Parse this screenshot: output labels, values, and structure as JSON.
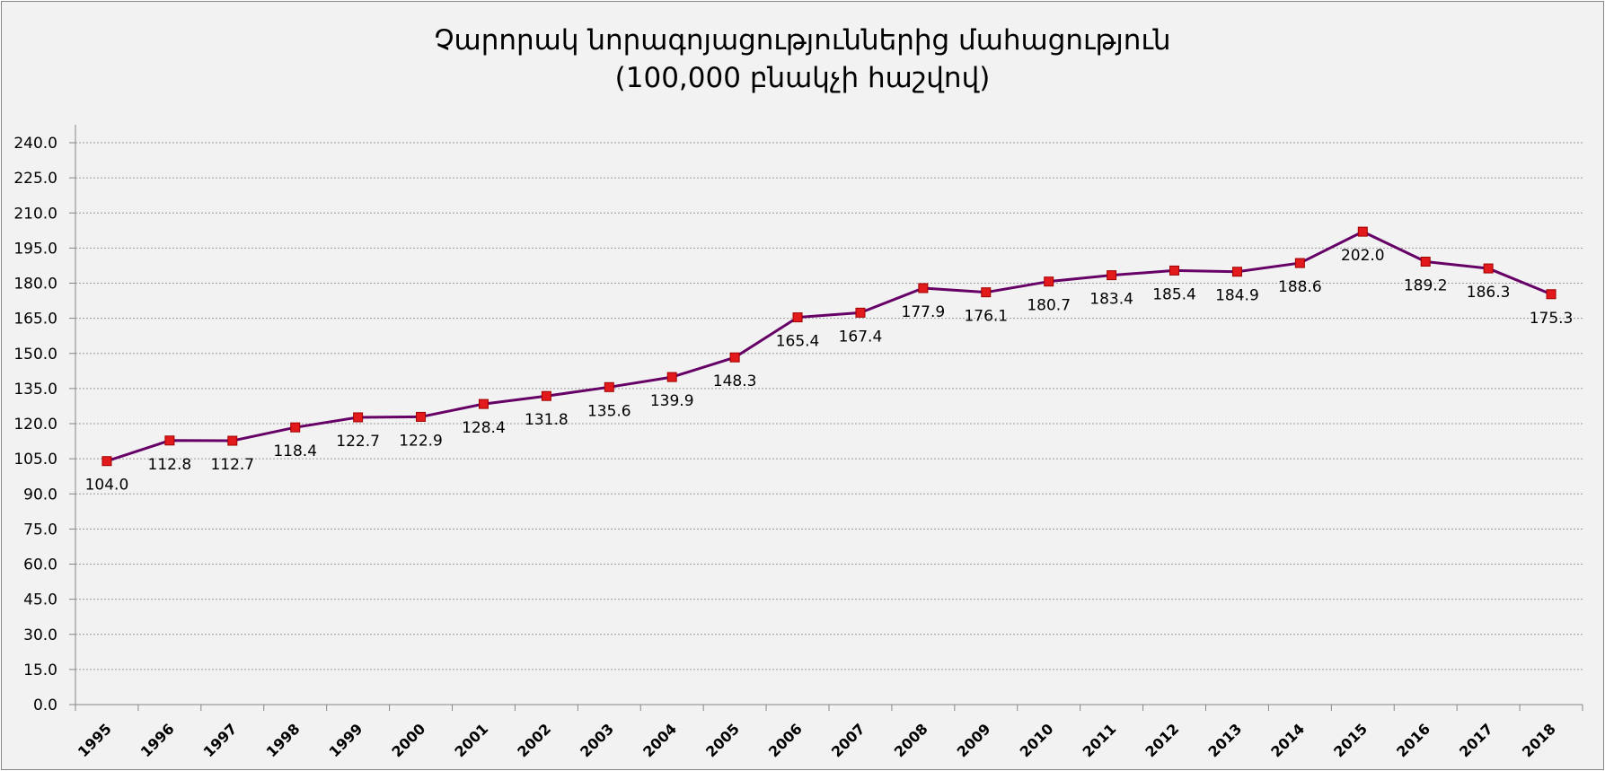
{
  "chart_data": {
    "type": "line",
    "title": "Չարորակ նորագոյացություններից մահացություն",
    "subtitle": "(100,000 բնակչի հաշվով)",
    "xlabel": "",
    "ylabel": "",
    "x": [
      "1995",
      "1996",
      "1997",
      "1998",
      "1999",
      "2000",
      "2001",
      "2002",
      "2003",
      "2004",
      "2005",
      "2006",
      "2007",
      "2008",
      "2009",
      "2010",
      "2011",
      "2012",
      "2013",
      "2014",
      "2015",
      "2016",
      "2017",
      "2018"
    ],
    "series": [
      {
        "values": [
          104.0,
          112.8,
          112.7,
          118.4,
          122.7,
          122.9,
          128.4,
          131.8,
          135.6,
          139.9,
          148.3,
          165.4,
          167.4,
          177.9,
          176.1,
          180.7,
          183.4,
          185.4,
          184.9,
          188.6,
          202.0,
          189.2,
          186.3,
          175.3
        ],
        "labels": [
          "104.0",
          "112.8",
          "112.7",
          "118.4",
          "122.7",
          "122.9",
          "128.4",
          "131.8",
          "135.6",
          "139.9",
          "148.3",
          "165.4",
          "167.4",
          "177.9",
          "176.1",
          "180.7",
          "183.4",
          "185.4",
          "184.9",
          "188.6",
          "202.0",
          "189.2",
          "186.3",
          "175.3"
        ],
        "line_color": "#660066",
        "marker_color": "#e31a1c"
      }
    ],
    "ylim": [
      0,
      240
    ],
    "yticks": [
      "0.0",
      "15.0",
      "30.0",
      "45.0",
      "60.0",
      "75.0",
      "90.0",
      "105.0",
      "120.0",
      "135.0",
      "150.0",
      "165.0",
      "180.0",
      "195.0",
      "210.0",
      "225.0",
      "240.0"
    ],
    "grid": true,
    "legend": false,
    "background_color": "#f2f2f2"
  }
}
